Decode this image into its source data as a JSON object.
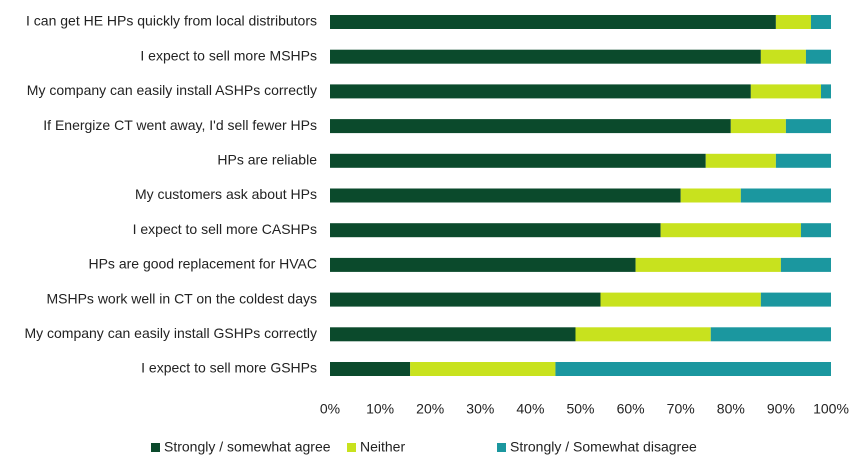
{
  "chart_data": {
    "type": "stacked_bar_horizontal",
    "categories": [
      "I can get HE HPs quickly from local distributors",
      "I expect to sell more MSHPs",
      "My company can easily install ASHPs correctly",
      "If Energize CT went away, I'd sell fewer HPs",
      "HPs are reliable",
      "My customers ask about HPs",
      "I expect to sell more CASHPs",
      "HPs are good replacement for HVAC",
      "MSHPs work well in CT on the coldest days",
      "My company can easily install GSHPs correctly",
      "I expect to sell more GSHPs"
    ],
    "series": [
      {
        "name": "Strongly / somewhat agree",
        "color": "#0b4a2c",
        "values": [
          89,
          86,
          84,
          80,
          75,
          70,
          66,
          61,
          54,
          49,
          16
        ]
      },
      {
        "name": "Neither",
        "color": "#c8e21e",
        "values": [
          7,
          9,
          14,
          11,
          14,
          12,
          28,
          29,
          32,
          27,
          29
        ]
      },
      {
        "name": "Strongly / Somewhat disagree",
        "color": "#1b979f",
        "values": [
          4,
          5,
          2,
          9,
          11,
          18,
          6,
          10,
          14,
          24,
          55
        ]
      }
    ],
    "xlim": [
      0,
      100
    ],
    "xticks": [
      {
        "value": 0,
        "label": "0%"
      },
      {
        "value": 10,
        "label": "10%"
      },
      {
        "value": 20,
        "label": "20%"
      },
      {
        "value": 30,
        "label": "30%"
      },
      {
        "value": 40,
        "label": "40%"
      },
      {
        "value": 50,
        "label": "50%"
      },
      {
        "value": 60,
        "label": "60%"
      },
      {
        "value": 70,
        "label": "70%"
      },
      {
        "value": 80,
        "label": "80%"
      },
      {
        "value": 90,
        "label": "90%"
      },
      {
        "value": 100,
        "label": "100%"
      }
    ],
    "legend": "bottom",
    "grid": false
  }
}
